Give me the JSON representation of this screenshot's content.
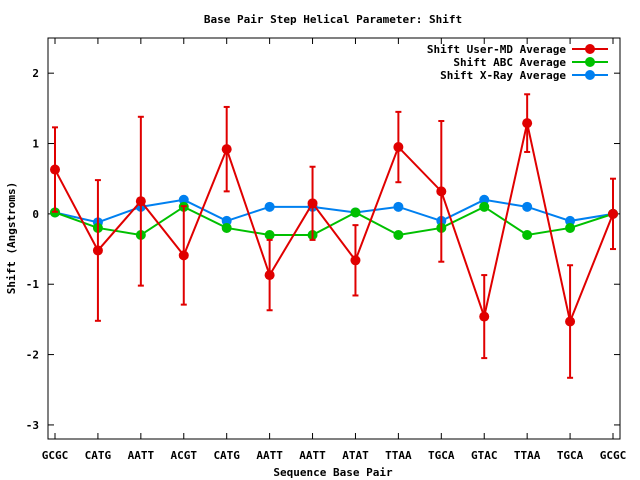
{
  "chart_data": {
    "type": "line",
    "title": "Base Pair Step Helical Parameter: Shift",
    "xlabel": "Sequence Base Pair",
    "ylabel": "Shift (Angstroms)",
    "categories": [
      "GCGC",
      "CATG",
      "AATT",
      "ACGT",
      "CATG",
      "AATT",
      "AATT",
      "ATAT",
      "TTAA",
      "TGCA",
      "GTAC",
      "TTAA",
      "TGCA",
      "GCGC"
    ],
    "ylim": [
      -3.2,
      2.5
    ],
    "yticks": [
      -3,
      -2,
      -1,
      0,
      1,
      2
    ],
    "legend_position": "top-right",
    "grid": false,
    "series": [
      {
        "name": "Shift User-MD Average",
        "color": "#e00000",
        "values": [
          0.63,
          -0.52,
          0.18,
          -0.59,
          0.92,
          -0.87,
          0.15,
          -0.66,
          0.95,
          0.32,
          -1.46,
          1.29,
          -1.53,
          0.0
        ],
        "error": [
          0.6,
          1.0,
          1.2,
          0.7,
          0.6,
          0.5,
          0.52,
          0.5,
          0.5,
          1.0,
          0.59,
          0.41,
          0.8,
          0.5
        ]
      },
      {
        "name": "Shift ABC Average",
        "color": "#00c000",
        "values": [
          0.02,
          -0.2,
          -0.3,
          0.1,
          -0.2,
          -0.3,
          -0.3,
          0.02,
          -0.3,
          -0.2,
          0.1,
          -0.3,
          -0.2,
          0.0
        ]
      },
      {
        "name": "Shift X-Ray Average",
        "color": "#0080f0",
        "values": [
          0.02,
          -0.12,
          0.1,
          0.2,
          -0.1,
          0.1,
          0.1,
          0.02,
          0.1,
          -0.1,
          0.2,
          0.1,
          -0.1,
          0.0
        ]
      }
    ]
  }
}
